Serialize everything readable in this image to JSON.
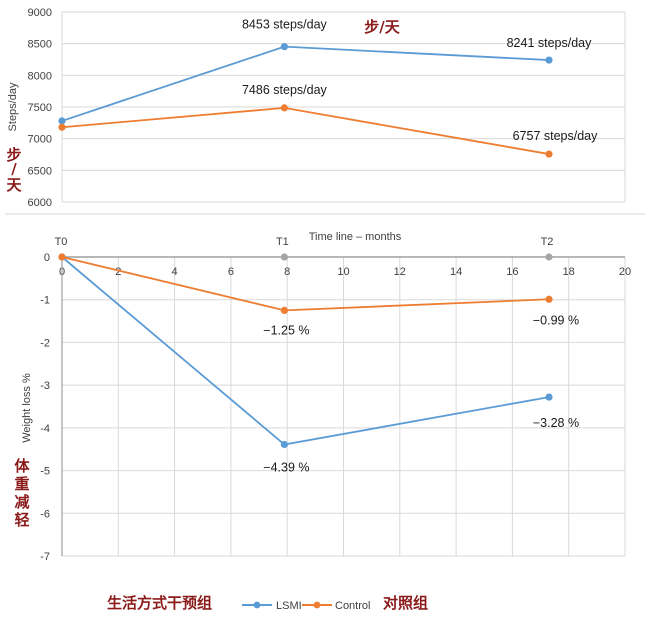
{
  "colors": {
    "lsmi": "#5b9bd5",
    "control": "#ed7d31",
    "gray": "#a5a5a5",
    "annotation": "#8b1a1a",
    "grid": "#d9d9d9"
  },
  "chart_data": [
    {
      "type": "line",
      "title": "",
      "xlabel": "",
      "ylabel": "Steps/day",
      "ylabel_cn": "步/天",
      "title_cn": "步/天",
      "ylim": [
        6000,
        9000
      ],
      "yticks": [
        "6000",
        "6500",
        "7000",
        "7500",
        "8000",
        "8500",
        "9000"
      ],
      "grid": true,
      "x": [
        0,
        7.9,
        17.3
      ],
      "series": [
        {
          "name": "LSMI",
          "key": "lsmi",
          "values": [
            7280,
            8453,
            8241
          ],
          "labels": [
            "",
            "8453 steps/day",
            "8241 steps/day"
          ]
        },
        {
          "name": "Control",
          "key": "control",
          "values": [
            7180,
            7486,
            6757
          ],
          "labels": [
            "",
            "7486 steps/day",
            "6757 steps/day"
          ]
        }
      ]
    },
    {
      "type": "line",
      "title": "",
      "xlabel": "Time line – months",
      "ylabel": "Weight loss %",
      "ylabel_cn": "体重减轻",
      "xlim": [
        0,
        20
      ],
      "xticks": [
        "0",
        "2",
        "4",
        "6",
        "8",
        "10",
        "12",
        "14",
        "16",
        "18",
        "20"
      ],
      "ylim": [
        -7,
        0
      ],
      "yticks": [
        "0",
        "-1",
        "-2",
        "-3",
        "-4",
        "-5",
        "-6",
        "-7"
      ],
      "grid": true,
      "timepoints": [
        {
          "label": "T0",
          "x": 0
        },
        {
          "label": "T1",
          "x": 7.9
        },
        {
          "label": "T2",
          "x": 17.3
        }
      ],
      "x": [
        0,
        7.9,
        17.3
      ],
      "series": [
        {
          "name": "LSMI",
          "key": "lsmi",
          "values": [
            0,
            -4.39,
            -3.28
          ],
          "labels": [
            "",
            "−4.39 %",
            "−3.28 %"
          ]
        },
        {
          "name": "Control",
          "key": "control",
          "values": [
            0,
            -1.25,
            -0.99
          ],
          "labels": [
            "",
            "−1.25 %",
            "−0.99 %"
          ]
        }
      ]
    }
  ],
  "legend": {
    "position": "bottom",
    "prefix_cn": "生活方式干预组",
    "suffix_cn": "对照组",
    "items": [
      {
        "name": "LSMI",
        "key": "lsmi"
      },
      {
        "name": "Control",
        "key": "control"
      }
    ]
  }
}
